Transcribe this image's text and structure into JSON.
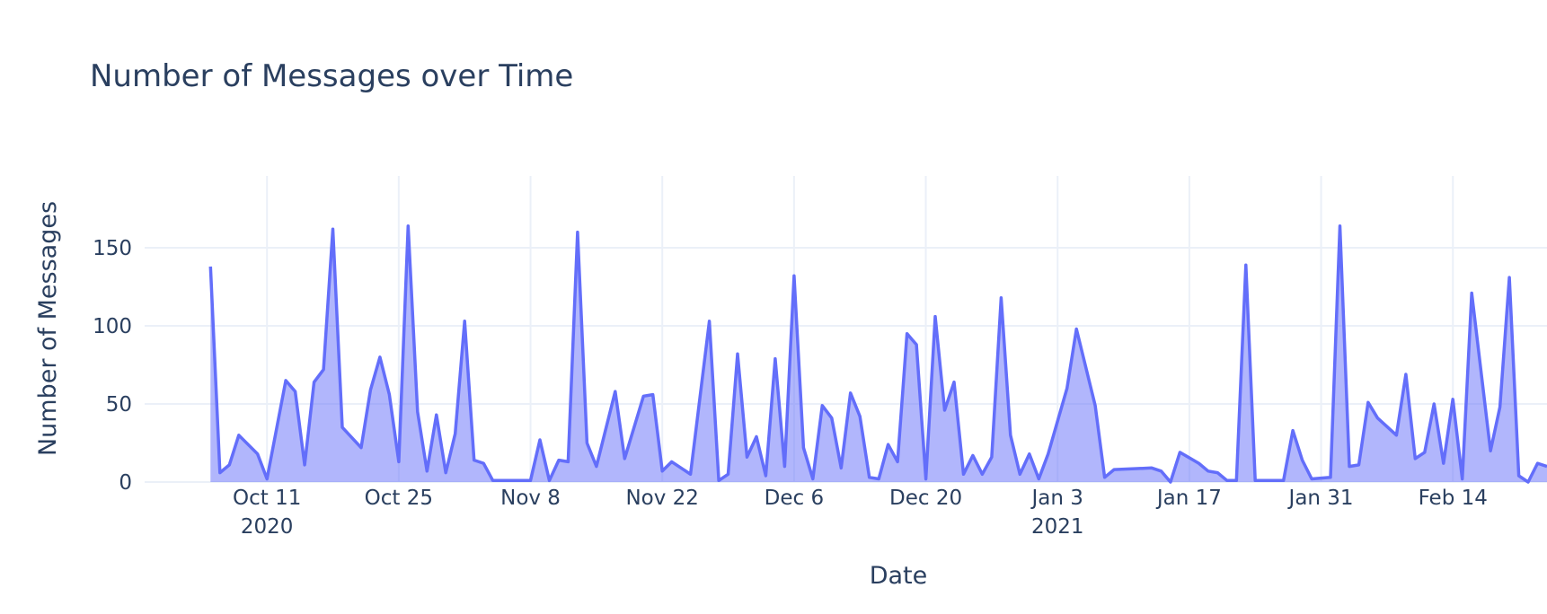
{
  "chart_data": {
    "type": "area",
    "title": "Number of Messages over Time",
    "xlabel": "Date",
    "ylabel": "Number of Messages",
    "xlim": [
      "2020-09-28",
      "2021-02-24"
    ],
    "ylim": [
      0,
      196
    ],
    "y_ticks": [
      0,
      50,
      100,
      150
    ],
    "x_ticks": [
      {
        "date": "2020-10-11",
        "label": "Oct 11",
        "sublabel": "2020"
      },
      {
        "date": "2020-10-25",
        "label": "Oct 25",
        "sublabel": ""
      },
      {
        "date": "2020-11-08",
        "label": "Nov 8",
        "sublabel": ""
      },
      {
        "date": "2020-11-22",
        "label": "Nov 22",
        "sublabel": ""
      },
      {
        "date": "2020-12-06",
        "label": "Dec 6",
        "sublabel": ""
      },
      {
        "date": "2020-12-20",
        "label": "Dec 20",
        "sublabel": ""
      },
      {
        "date": "2021-01-03",
        "label": "Jan 3",
        "sublabel": "2021"
      },
      {
        "date": "2021-01-17",
        "label": "Jan 17",
        "sublabel": ""
      },
      {
        "date": "2021-01-31",
        "label": "Jan 31",
        "sublabel": ""
      },
      {
        "date": "2021-02-14",
        "label": "Feb 14",
        "sublabel": ""
      }
    ],
    "grid": true,
    "legend": "none",
    "colors": {
      "line": "#636efa",
      "fill": "rgba(99,110,250,0.5)",
      "grid": "#ebf0f8",
      "text": "#2a3f5f"
    },
    "series": [
      {
        "points": [
          [
            "2020-10-05",
            138
          ],
          [
            "2020-10-06",
            6
          ],
          [
            "2020-10-07",
            11
          ],
          [
            "2020-10-08",
            30
          ],
          [
            "2020-10-10",
            18
          ],
          [
            "2020-10-11",
            2
          ],
          [
            "2020-10-13",
            65
          ],
          [
            "2020-10-14",
            58
          ],
          [
            "2020-10-15",
            11
          ],
          [
            "2020-10-16",
            64
          ],
          [
            "2020-10-17",
            72
          ],
          [
            "2020-10-18",
            162
          ],
          [
            "2020-10-19",
            35
          ],
          [
            "2020-10-21",
            22
          ],
          [
            "2020-10-22",
            59
          ],
          [
            "2020-10-23",
            80
          ],
          [
            "2020-10-24",
            56
          ],
          [
            "2020-10-25",
            13
          ],
          [
            "2020-10-26",
            164
          ],
          [
            "2020-10-27",
            45
          ],
          [
            "2020-10-28",
            7
          ],
          [
            "2020-10-29",
            43
          ],
          [
            "2020-10-30",
            6
          ],
          [
            "2020-10-31",
            31
          ],
          [
            "2020-11-01",
            103
          ],
          [
            "2020-11-02",
            14
          ],
          [
            "2020-11-03",
            12
          ],
          [
            "2020-11-04",
            1
          ],
          [
            "2020-11-08",
            1
          ],
          [
            "2020-11-09",
            27
          ],
          [
            "2020-11-10",
            1
          ],
          [
            "2020-11-11",
            14
          ],
          [
            "2020-11-12",
            13
          ],
          [
            "2020-11-13",
            160
          ],
          [
            "2020-11-14",
            25
          ],
          [
            "2020-11-15",
            10
          ],
          [
            "2020-11-17",
            58
          ],
          [
            "2020-11-18",
            15
          ],
          [
            "2020-11-20",
            55
          ],
          [
            "2020-11-21",
            56
          ],
          [
            "2020-11-22",
            7
          ],
          [
            "2020-11-23",
            13
          ],
          [
            "2020-11-25",
            5
          ],
          [
            "2020-11-27",
            103
          ],
          [
            "2020-11-28",
            1
          ],
          [
            "2020-11-29",
            5
          ],
          [
            "2020-11-30",
            82
          ],
          [
            "2020-12-01",
            16
          ],
          [
            "2020-12-02",
            29
          ],
          [
            "2020-12-03",
            4
          ],
          [
            "2020-12-04",
            79
          ],
          [
            "2020-12-05",
            10
          ],
          [
            "2020-12-06",
            132
          ],
          [
            "2020-12-07",
            22
          ],
          [
            "2020-12-08",
            2
          ],
          [
            "2020-12-09",
            49
          ],
          [
            "2020-12-10",
            41
          ],
          [
            "2020-12-11",
            9
          ],
          [
            "2020-12-12",
            57
          ],
          [
            "2020-12-13",
            42
          ],
          [
            "2020-12-14",
            3
          ],
          [
            "2020-12-15",
            2
          ],
          [
            "2020-12-16",
            24
          ],
          [
            "2020-12-17",
            13
          ],
          [
            "2020-12-18",
            95
          ],
          [
            "2020-12-19",
            88
          ],
          [
            "2020-12-20",
            2
          ],
          [
            "2020-12-21",
            106
          ],
          [
            "2020-12-22",
            46
          ],
          [
            "2020-12-23",
            64
          ],
          [
            "2020-12-24",
            5
          ],
          [
            "2020-12-25",
            17
          ],
          [
            "2020-12-26",
            5
          ],
          [
            "2020-12-27",
            16
          ],
          [
            "2020-12-28",
            118
          ],
          [
            "2020-12-29",
            30
          ],
          [
            "2020-12-30",
            5
          ],
          [
            "2020-12-31",
            18
          ],
          [
            "2021-01-01",
            2
          ],
          [
            "2021-01-02",
            18
          ],
          [
            "2021-01-04",
            60
          ],
          [
            "2021-01-05",
            98
          ],
          [
            "2021-01-07",
            49
          ],
          [
            "2021-01-08",
            3
          ],
          [
            "2021-01-09",
            8
          ],
          [
            "2021-01-13",
            9
          ],
          [
            "2021-01-14",
            7
          ],
          [
            "2021-01-15",
            0
          ],
          [
            "2021-01-16",
            19
          ],
          [
            "2021-01-18",
            12
          ],
          [
            "2021-01-19",
            7
          ],
          [
            "2021-01-20",
            6
          ],
          [
            "2021-01-21",
            1
          ],
          [
            "2021-01-22",
            1
          ],
          [
            "2021-01-23",
            139
          ],
          [
            "2021-01-24",
            1
          ],
          [
            "2021-01-27",
            1
          ],
          [
            "2021-01-28",
            33
          ],
          [
            "2021-01-29",
            14
          ],
          [
            "2021-01-30",
            2
          ],
          [
            "2021-02-01",
            3
          ],
          [
            "2021-02-02",
            164
          ],
          [
            "2021-02-03",
            10
          ],
          [
            "2021-02-04",
            11
          ],
          [
            "2021-02-05",
            51
          ],
          [
            "2021-02-06",
            41
          ],
          [
            "2021-02-08",
            30
          ],
          [
            "2021-02-09",
            69
          ],
          [
            "2021-02-10",
            15
          ],
          [
            "2021-02-11",
            19
          ],
          [
            "2021-02-12",
            50
          ],
          [
            "2021-02-13",
            12
          ],
          [
            "2021-02-14",
            53
          ],
          [
            "2021-02-15",
            2
          ],
          [
            "2021-02-16",
            121
          ],
          [
            "2021-02-18",
            20
          ],
          [
            "2021-02-19",
            48
          ],
          [
            "2021-02-20",
            131
          ],
          [
            "2021-02-21",
            4
          ],
          [
            "2021-02-22",
            0
          ],
          [
            "2021-02-23",
            12
          ],
          [
            "2021-02-24",
            10
          ]
        ]
      }
    ]
  }
}
